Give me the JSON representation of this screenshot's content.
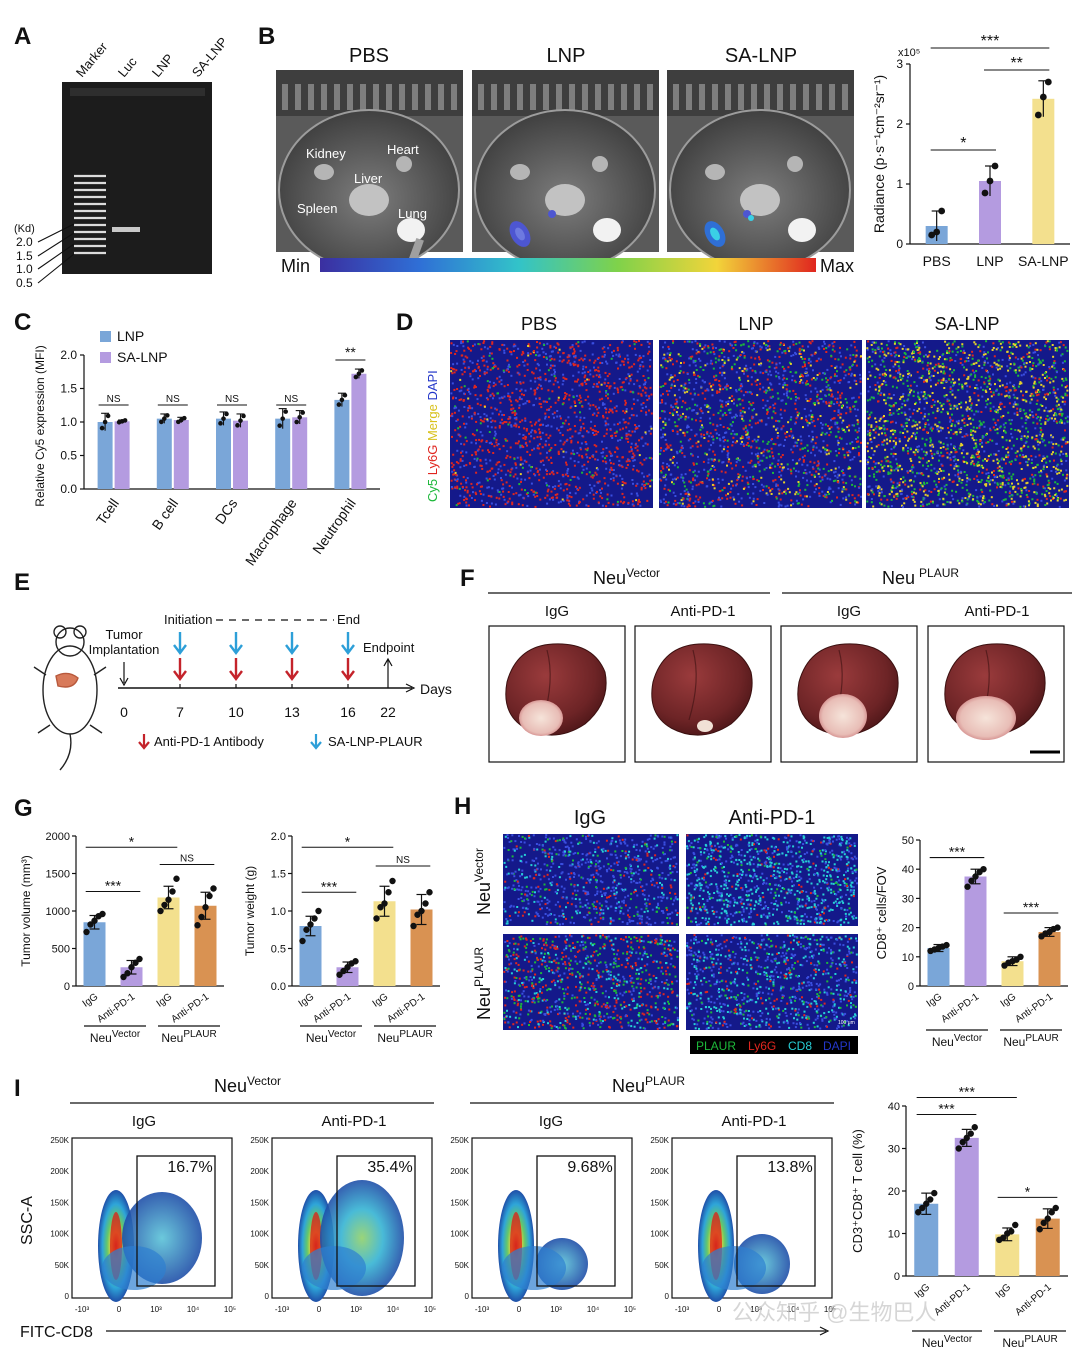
{
  "colors": {
    "blue": "#7aa6d8",
    "purple": "#b49be0",
    "yellow": "#f3e08e",
    "orange": "#d99252",
    "arrow_red": "#c4232b",
    "arrow_blue": "#2d9fd8"
  },
  "panels": {
    "A": {
      "label": "A",
      "lanes": [
        "Marker",
        "Luc",
        "LNP",
        "SA-LNP"
      ],
      "unit": "(Kd)",
      "sizes": [
        "2.0",
        "1.5",
        "1.0",
        "0.5"
      ]
    },
    "B": {
      "label": "B",
      "groups": [
        "PBS",
        "LNP",
        "SA-LNP"
      ],
      "organs": [
        "Kidney",
        "Heart",
        "Liver",
        "Spleen",
        "Lung"
      ],
      "scale_min": "Min",
      "scale_max": "Max"
    },
    "C": {
      "label": "C"
    },
    "D": {
      "label": "D",
      "groups": [
        "PBS",
        "LNP",
        "SA-LNP"
      ],
      "side_label": {
        "cy5": "Cy5",
        "ly6g": "Ly6G",
        "merge": "Merge",
        "dapi": "DAPI"
      }
    },
    "E": {
      "label": "E",
      "tumor": "Tumor",
      "implantation": "Implantation",
      "initiation": "Initiation",
      "end": "End",
      "endpoint": "Endpoint",
      "days_label": "Days",
      "days": [
        "0",
        "7",
        "10",
        "13",
        "16",
        "22"
      ],
      "legend_red": "Anti-PD-1 Antibody",
      "legend_blue": "SA-LNP-PLAUR"
    },
    "F": {
      "label": "F",
      "neu": "Neu",
      "sup_vector": "Vector",
      "sup_plaur": "PLAUR",
      "treatments": [
        "IgG",
        "Anti-PD-1",
        "IgG",
        "Anti-PD-1"
      ]
    },
    "G": {
      "label": "G"
    },
    "H": {
      "label": "H",
      "cols": [
        "IgG",
        "Anti-PD-1"
      ],
      "row_neu": "Neu",
      "row_sup_vector": "Vector",
      "row_sup_plaur": "PLAUR",
      "legend": {
        "plaur": "PLAUR",
        "ly6g": "Ly6G",
        "cd8": "CD8",
        "dapi": "DAPI"
      },
      "scalebar": "100 μm"
    },
    "I": {
      "label": "I",
      "neu": "Neu",
      "sup_vector": "Vector",
      "sup_plaur": "PLAUR",
      "treatments": [
        "IgG",
        "Anti-PD-1",
        "IgG",
        "Anti-PD-1"
      ],
      "percents": [
        "16.7%",
        "35.4%",
        "9.68%",
        "13.8%"
      ],
      "y_axis": "SSC-A",
      "x_axis": "FITC-CD8",
      "y_ticks": [
        "250K",
        "200K",
        "150K",
        "100K",
        "50K",
        "0"
      ],
      "x_ticks": [
        "-10³",
        "0",
        "10³",
        "10⁴",
        "10⁵"
      ]
    }
  },
  "common": {
    "neu": "Neu",
    "sup_vector": "Vector",
    "sup_plaur": "PLAUR",
    "igg": "IgG",
    "antipd1": "Anti-PD-1"
  },
  "watermark": "公众知乎 @生物巴人",
  "chart_data": [
    {
      "id": "B-radiance",
      "type": "bar",
      "title": "",
      "ylabel": "Radiance (p·s⁻¹cm⁻²sr⁻¹)",
      "y_exponent": "x10⁵",
      "ylim": [
        0,
        3
      ],
      "yticks": [
        0,
        1,
        2,
        3
      ],
      "categories": [
        "PBS",
        "LNP",
        "SA-LNP"
      ],
      "values": [
        0.3,
        1.05,
        2.42
      ],
      "errors": [
        0.25,
        0.25,
        0.3
      ],
      "points": [
        [
          0.15,
          0.2,
          0.55
        ],
        [
          0.85,
          1.05,
          1.3
        ],
        [
          2.15,
          2.45,
          2.7
        ]
      ],
      "colors": [
        "#7aa6d8",
        "#b49be0",
        "#f3e08e"
      ],
      "significance": [
        {
          "from": 0,
          "to": 1,
          "label": "*",
          "y": 1.6
        },
        {
          "from": 1,
          "to": 2,
          "label": "**",
          "y": 2.9
        },
        {
          "from": 0,
          "to": 2,
          "label": "***",
          "y": 3.25
        }
      ]
    },
    {
      "id": "C-cy5",
      "type": "bar",
      "ylabel": "Relative Cy5 expression (MFI)",
      "ylim": [
        0,
        2.0
      ],
      "yticks": [
        0.0,
        0.5,
        1.0,
        1.5,
        2.0
      ],
      "categories": [
        "Tcell",
        "B cell",
        "DCs",
        "Macrophage",
        "Neutrophil"
      ],
      "series": [
        {
          "name": "LNP",
          "values": [
            1.0,
            1.05,
            1.05,
            1.05,
            1.33
          ],
          "errors": [
            0.13,
            0.07,
            0.1,
            0.15,
            0.1
          ],
          "color": "#7aa6d8"
        },
        {
          "name": "SA-LNP",
          "values": [
            1.01,
            1.03,
            1.02,
            1.07,
            1.72
          ],
          "errors": [
            0.02,
            0.04,
            0.1,
            0.1,
            0.07
          ],
          "color": "#b49be0"
        }
      ],
      "significance": [
        "NS",
        "NS",
        "NS",
        "NS",
        "**"
      ]
    },
    {
      "id": "G-volume",
      "type": "bar",
      "ylabel": "Tumor volume (mm³)",
      "ylim": [
        0,
        2000
      ],
      "yticks": [
        0,
        500,
        1000,
        1500,
        2000
      ],
      "categories": [
        "IgG",
        "Anti-PD-1",
        "IgG",
        "Anti-PD-1"
      ],
      "groups": [
        "NeuVector",
        "NeuPLAUR"
      ],
      "values": [
        850,
        250,
        1180,
        1070
      ],
      "errors": [
        90,
        90,
        150,
        180
      ],
      "points": [
        [
          720,
          820,
          870,
          930,
          960
        ],
        [
          120,
          170,
          250,
          310,
          360
        ],
        [
          1000,
          1080,
          1150,
          1260,
          1430
        ],
        [
          810,
          920,
          1050,
          1200,
          1300
        ]
      ],
      "colors": [
        "#7aa6d8",
        "#b49be0",
        "#f3e08e",
        "#d99252"
      ],
      "significance": [
        {
          "from": 0,
          "to": 1,
          "label": "***",
          "y": 1260
        },
        {
          "from": 2,
          "to": 3,
          "label": "NS",
          "y": 1620
        },
        {
          "from": 0,
          "to": 2,
          "label": "*",
          "y": 1850
        }
      ]
    },
    {
      "id": "G-weight",
      "type": "bar",
      "ylabel": "Tumor weight (g)",
      "ylim": [
        0,
        2.0
      ],
      "yticks": [
        0.0,
        0.5,
        1.0,
        1.5,
        2.0
      ],
      "categories": [
        "IgG",
        "Anti-PD-1",
        "IgG",
        "Anti-PD-1"
      ],
      "groups": [
        "NeuVector",
        "NeuPLAUR"
      ],
      "values": [
        0.8,
        0.25,
        1.13,
        1.02
      ],
      "errors": [
        0.13,
        0.07,
        0.2,
        0.2
      ],
      "points": [
        [
          0.6,
          0.75,
          0.82,
          0.9,
          1.0
        ],
        [
          0.15,
          0.2,
          0.25,
          0.3,
          0.33
        ],
        [
          0.9,
          1.05,
          1.1,
          1.25,
          1.4
        ],
        [
          0.8,
          0.95,
          1.0,
          1.1,
          1.25
        ]
      ],
      "colors": [
        "#7aa6d8",
        "#b49be0",
        "#f3e08e",
        "#d99252"
      ],
      "significance": [
        {
          "from": 0,
          "to": 1,
          "label": "***",
          "y": 1.25
        },
        {
          "from": 2,
          "to": 3,
          "label": "NS",
          "y": 1.6
        },
        {
          "from": 0,
          "to": 2,
          "label": "*",
          "y": 1.85
        }
      ]
    },
    {
      "id": "H-cd8",
      "type": "bar",
      "ylabel": "CD8⁺ cells/FOV",
      "ylim": [
        0,
        50
      ],
      "yticks": [
        0,
        10,
        20,
        30,
        40,
        50
      ],
      "categories": [
        "IgG",
        "Anti-PD-1",
        "IgG",
        "Anti-PD-1"
      ],
      "groups": [
        "NeuVector",
        "NeuPLAUR"
      ],
      "values": [
        13,
        37.5,
        8.5,
        18.5
      ],
      "errors": [
        1.2,
        2.5,
        1.5,
        1.5
      ],
      "points": [
        [
          12,
          12.5,
          13,
          13.5,
          14
        ],
        [
          34,
          36,
          37.5,
          39,
          40
        ],
        [
          7,
          8,
          8.5,
          9,
          10
        ],
        [
          17,
          18,
          18.5,
          19.5,
          20
        ]
      ],
      "colors": [
        "#7aa6d8",
        "#b49be0",
        "#f3e08e",
        "#d99252"
      ],
      "significance": [
        {
          "from": 0,
          "to": 1,
          "label": "***",
          "y": 44
        },
        {
          "from": 2,
          "to": 3,
          "label": "***",
          "y": 25
        }
      ]
    },
    {
      "id": "I-cd3cd8",
      "type": "bar",
      "ylabel": "CD3⁺CD8⁺ T cell (%)",
      "ylim": [
        0,
        40
      ],
      "yticks": [
        0,
        10,
        20,
        30,
        40
      ],
      "categories": [
        "IgG",
        "Anti-PD-1",
        "IgG",
        "Anti-PD-1"
      ],
      "groups": [
        "NeuVector",
        "NeuPLAUR"
      ],
      "values": [
        17,
        32.5,
        9.8,
        13.5
      ],
      "errors": [
        2.5,
        2,
        1.5,
        2.3
      ],
      "points": [
        [
          15,
          16,
          17,
          18,
          19.5
        ],
        [
          30,
          31.5,
          32.5,
          33.5,
          35
        ],
        [
          8.5,
          9,
          10,
          10.5,
          12
        ],
        [
          11,
          12.5,
          13.5,
          15,
          16
        ]
      ],
      "colors": [
        "#7aa6d8",
        "#b49be0",
        "#f3e08e",
        "#d99252"
      ],
      "significance": [
        {
          "from": 0,
          "to": 1,
          "label": "***",
          "y": 38
        },
        {
          "from": 0,
          "to": 2,
          "label": "***",
          "y": 42
        },
        {
          "from": 2,
          "to": 3,
          "label": "*",
          "y": 18.5
        }
      ]
    },
    {
      "id": "I-flow",
      "type": "scatter",
      "description_values": [
        "16.7%",
        "35.4%",
        "9.68%",
        "13.8%"
      ]
    }
  ]
}
